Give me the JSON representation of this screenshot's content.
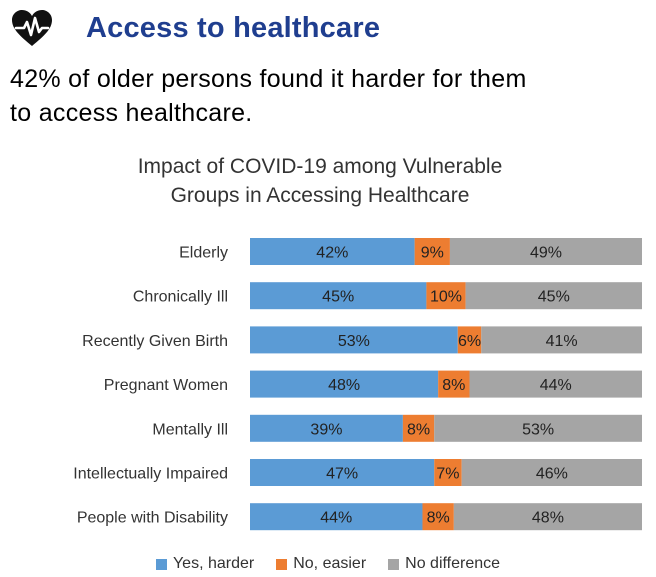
{
  "header": {
    "title": "Access to healthcare",
    "icon": "heart-pulse-icon",
    "icon_color": "#111111"
  },
  "subtitle": {
    "line1": "42% of older persons found it harder for them",
    "line2": "to access healthcare."
  },
  "colors": {
    "title": "#1f3e8f",
    "yes": "#5b9bd5",
    "no": "#ed7d31",
    "nodiff": "#a5a5a5"
  },
  "chart_data": {
    "type": "bar",
    "orientation": "horizontal",
    "stacked": true,
    "title_line1": "Impact of COVID-19 among Vulnerable",
    "title_line2": "Groups in Accessing Healthcare",
    "categories": [
      "Elderly",
      "Chronically Ill",
      "Recently Given Birth",
      "Pregnant Women",
      "Mentally Ill",
      "Intellectually Impaired",
      "People with Disability"
    ],
    "series": [
      {
        "name": "Yes, harder",
        "values": [
          42,
          45,
          53,
          48,
          39,
          47,
          44
        ]
      },
      {
        "name": "No, easier",
        "values": [
          9,
          10,
          6,
          8,
          8,
          7,
          8
        ]
      },
      {
        "name": "No difference",
        "values": [
          49,
          45,
          41,
          44,
          53,
          46,
          48
        ]
      }
    ],
    "xlim": [
      0,
      100
    ],
    "value_suffix": "%",
    "legend_position": "bottom",
    "grid": false
  }
}
